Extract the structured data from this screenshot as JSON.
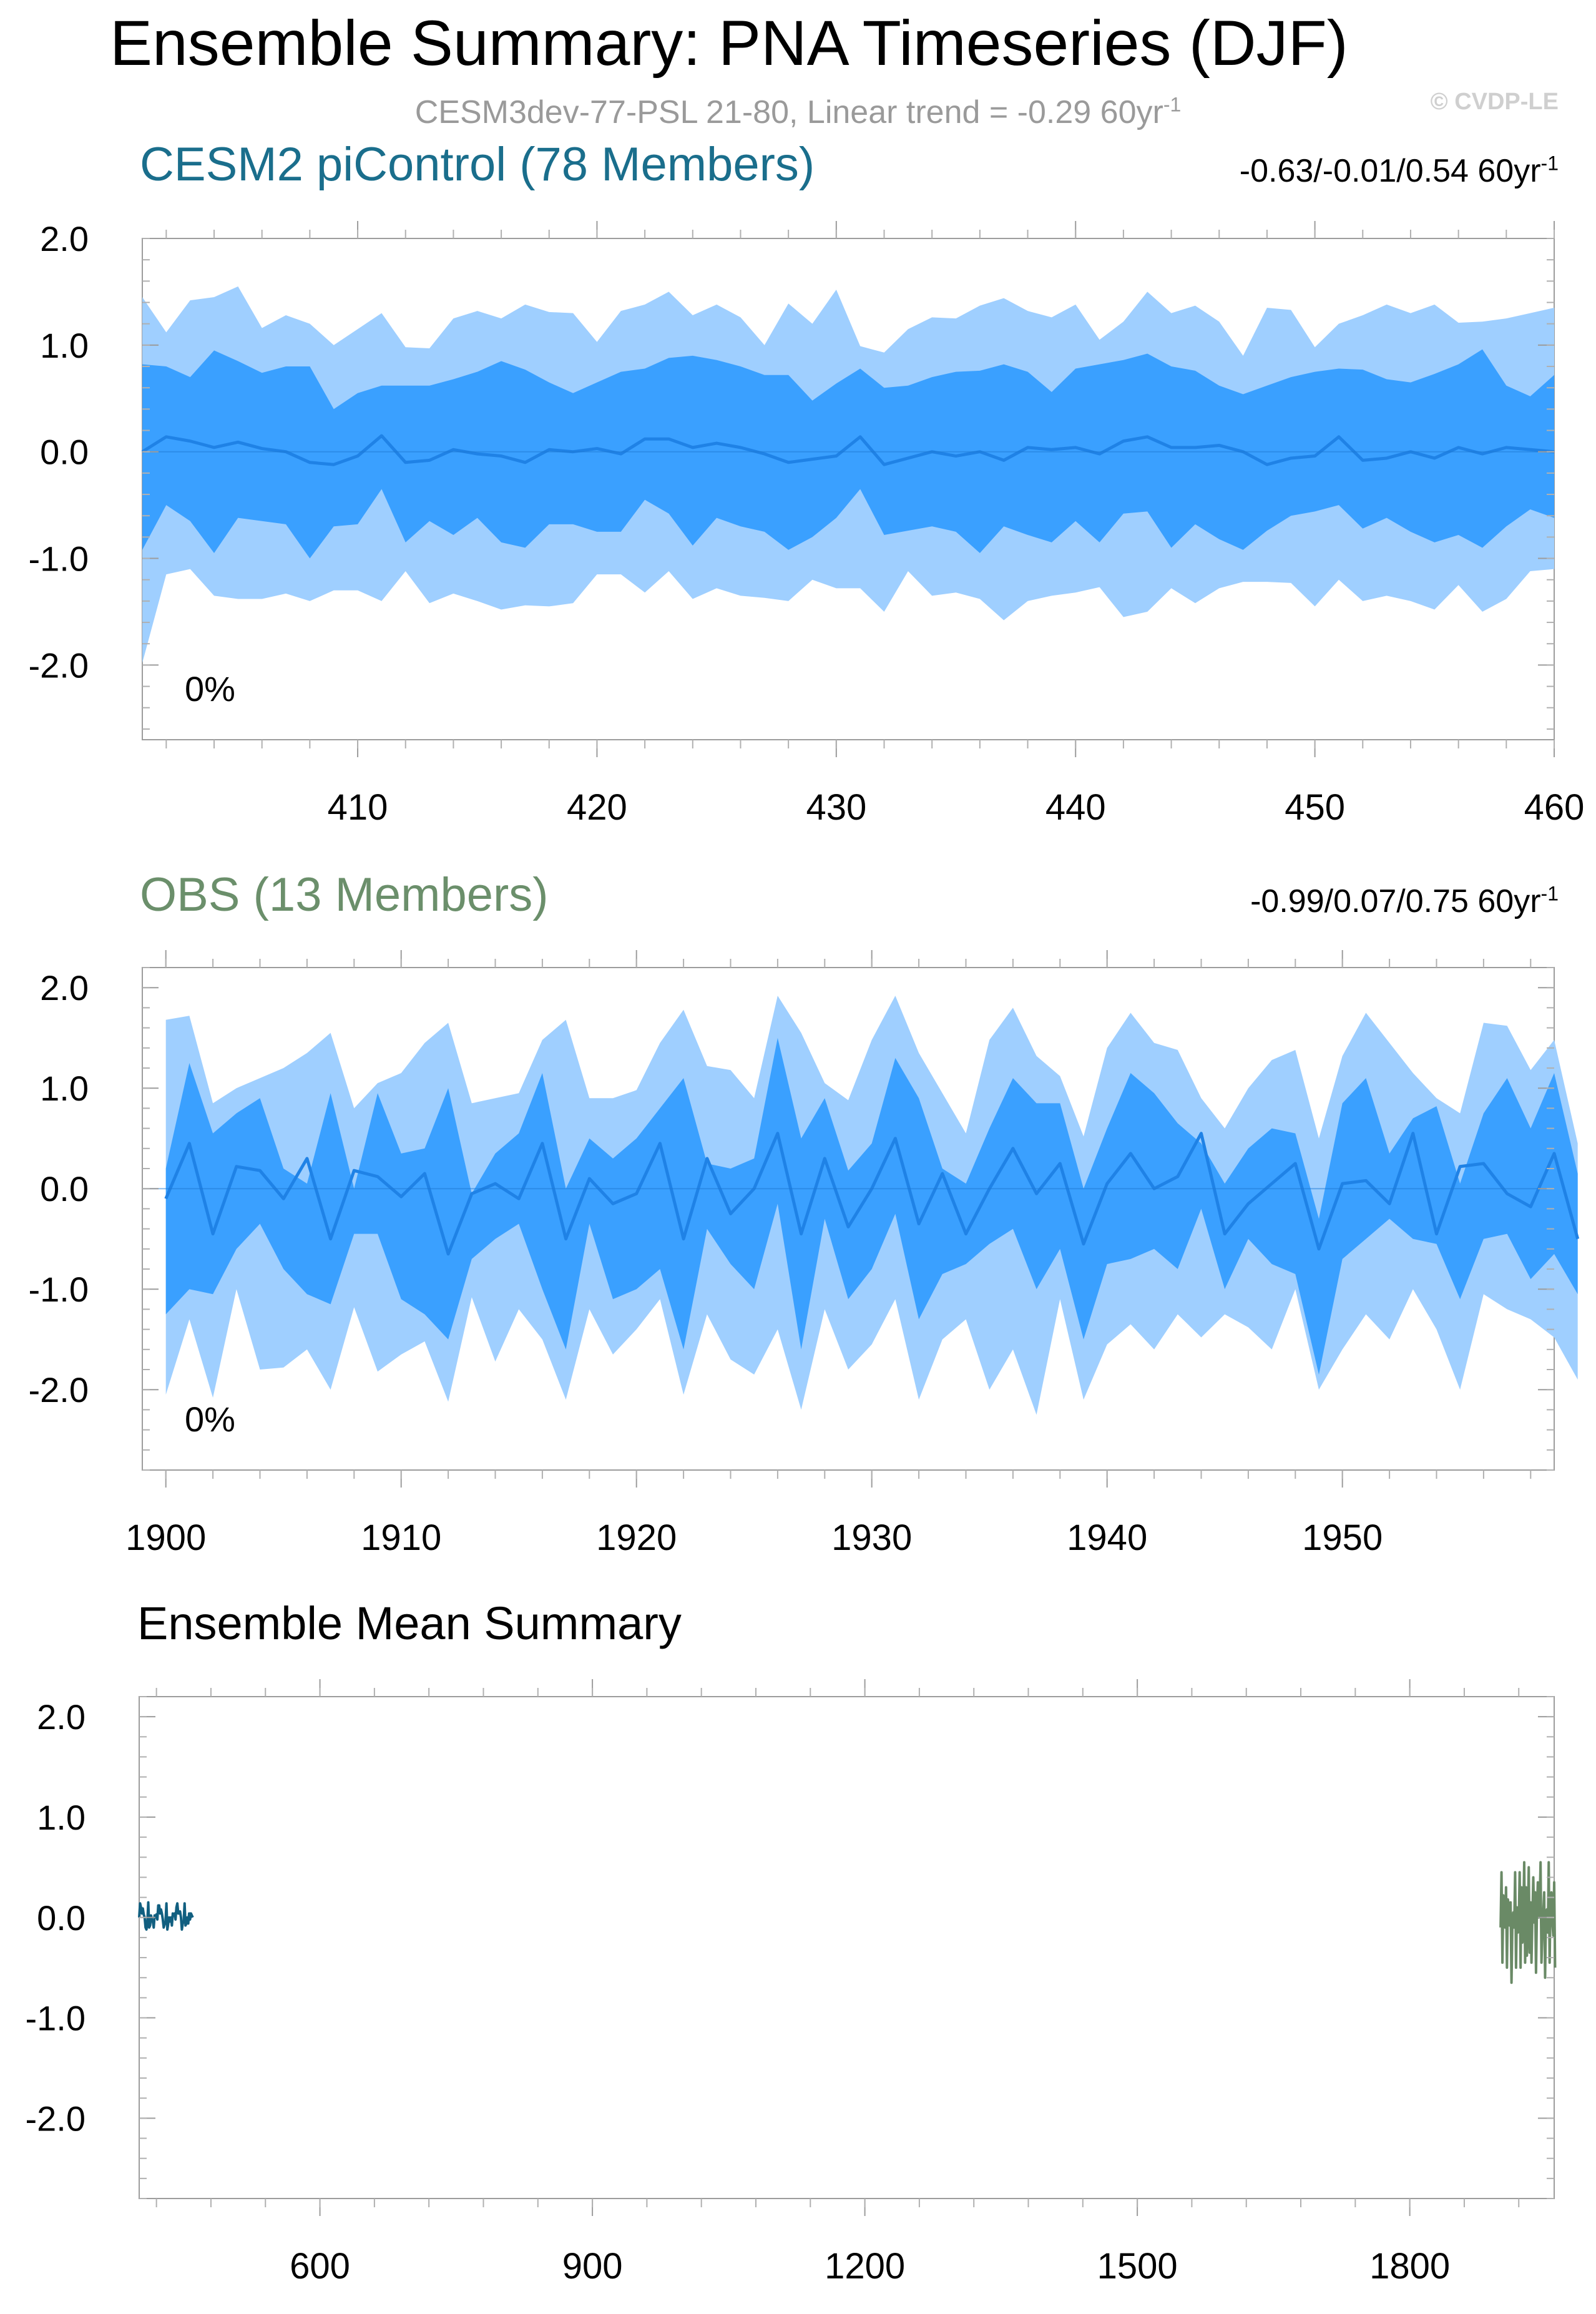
{
  "header": {
    "title": "Ensemble Summary: PNA Timeseries (DJF)",
    "subtitle": "CESM3dev-77-PSL 21-80, Linear trend = -0.29 60yr",
    "subtitle_unit_sup": "-1",
    "watermark": "© CVDP-LE"
  },
  "colors": {
    "band_outer": "#9fcfff",
    "band_inner": "#3aa0ff",
    "median_line": "#1f82e6",
    "cesm_title": "#1a6e8c",
    "cesm_mean": "#115f80",
    "obs_title": "#6b8f6b",
    "obs_mean": "#6a8a66"
  },
  "chart_data": [
    {
      "type": "area",
      "panel": "cesm2-picontrol",
      "title": "CESM2 piControl (78 Members)",
      "trend_text": "-0.63/-0.01/0.54 60yr",
      "trend_sup": "-1",
      "annotation": "0%",
      "xlim": [
        401,
        460
      ],
      "ylim": [
        -2.7,
        2.0
      ],
      "x_ticks": [
        410,
        420,
        430,
        440,
        450,
        460
      ],
      "y_ticks": [
        2.0,
        1.0,
        0.0,
        -1.0,
        -2.0
      ],
      "y_tick_labels": [
        "2.0",
        "1.0",
        "0.0",
        "-1.0",
        "-2.0"
      ],
      "x_start": 401,
      "series": [
        {
          "name": "max",
          "values": [
            1.45,
            1.12,
            1.42,
            1.45,
            1.55,
            1.16,
            1.28,
            1.2,
            1.0,
            1.15,
            1.3,
            0.98,
            0.97,
            1.25,
            1.32,
            1.25,
            1.38,
            1.31,
            1.3,
            1.03,
            1.32,
            1.38,
            1.5,
            1.28,
            1.38,
            1.26,
            1.0,
            1.39,
            1.2,
            1.52,
            0.99,
            0.93,
            1.15,
            1.26,
            1.25,
            1.37,
            1.44,
            1.32,
            1.26,
            1.38,
            1.05,
            1.22,
            1.5,
            1.3,
            1.37,
            1.22,
            0.9,
            1.35,
            1.33,
            0.98,
            1.2,
            1.28,
            1.38,
            1.3,
            1.38,
            1.21,
            1.22,
            1.25,
            1.3,
            1.35
          ]
        },
        {
          "name": "p75",
          "values": [
            0.82,
            0.8,
            0.7,
            0.95,
            0.85,
            0.74,
            0.8,
            0.8,
            0.4,
            0.55,
            0.62,
            0.62,
            0.62,
            0.68,
            0.75,
            0.85,
            0.77,
            0.65,
            0.55,
            0.65,
            0.75,
            0.78,
            0.88,
            0.9,
            0.86,
            0.8,
            0.72,
            0.72,
            0.48,
            0.64,
            0.78,
            0.6,
            0.62,
            0.7,
            0.75,
            0.76,
            0.82,
            0.75,
            0.56,
            0.78,
            0.82,
            0.86,
            0.92,
            0.8,
            0.76,
            0.62,
            0.54,
            0.62,
            0.7,
            0.75,
            0.78,
            0.77,
            0.68,
            0.65,
            0.73,
            0.82,
            0.96,
            0.62,
            0.52,
            0.72
          ]
        },
        {
          "name": "median",
          "values": [
            0.0,
            0.14,
            0.1,
            0.04,
            0.09,
            0.03,
            0.0,
            -0.1,
            -0.12,
            -0.04,
            0.15,
            -0.1,
            -0.08,
            0.02,
            -0.02,
            -0.04,
            -0.1,
            0.02,
            0.0,
            0.03,
            -0.02,
            0.12,
            0.12,
            0.04,
            0.08,
            0.04,
            -0.02,
            -0.1,
            -0.07,
            -0.04,
            0.14,
            -0.12,
            -0.06,
            0.0,
            -0.04,
            0.0,
            -0.08,
            0.04,
            0.02,
            0.04,
            -0.02,
            0.1,
            0.14,
            0.04,
            0.04,
            0.06,
            0.0,
            -0.12,
            -0.06,
            -0.04,
            0.14,
            -0.08,
            -0.06,
            0.0,
            -0.06,
            0.04,
            -0.02,
            0.04,
            0.02,
            0.0
          ]
        },
        {
          "name": "p25",
          "values": [
            -0.92,
            -0.5,
            -0.65,
            -0.95,
            -0.62,
            -0.65,
            -0.68,
            -1.0,
            -0.7,
            -0.68,
            -0.35,
            -0.85,
            -0.65,
            -0.78,
            -0.62,
            -0.85,
            -0.9,
            -0.68,
            -0.68,
            -0.75,
            -0.75,
            -0.45,
            -0.58,
            -0.88,
            -0.62,
            -0.7,
            -0.75,
            -0.92,
            -0.8,
            -0.62,
            -0.35,
            -0.78,
            -0.74,
            -0.7,
            -0.75,
            -0.95,
            -0.7,
            -0.78,
            -0.85,
            -0.65,
            -0.85,
            -0.58,
            -0.56,
            -0.9,
            -0.68,
            -0.82,
            -0.92,
            -0.74,
            -0.6,
            -0.56,
            -0.5,
            -0.72,
            -0.62,
            -0.75,
            -0.85,
            -0.78,
            -0.9,
            -0.7,
            -0.54,
            -0.62
          ]
        },
        {
          "name": "min",
          "values": [
            -1.98,
            -1.15,
            -1.1,
            -1.35,
            -1.38,
            -1.38,
            -1.33,
            -1.4,
            -1.3,
            -1.3,
            -1.4,
            -1.12,
            -1.42,
            -1.33,
            -1.4,
            -1.48,
            -1.44,
            -1.45,
            -1.42,
            -1.15,
            -1.15,
            -1.32,
            -1.12,
            -1.38,
            -1.28,
            -1.35,
            -1.37,
            -1.4,
            -1.2,
            -1.28,
            -1.28,
            -1.5,
            -1.12,
            -1.35,
            -1.32,
            -1.38,
            -1.58,
            -1.4,
            -1.35,
            -1.32,
            -1.27,
            -1.55,
            -1.5,
            -1.28,
            -1.42,
            -1.28,
            -1.22,
            -1.22,
            -1.23,
            -1.45,
            -1.2,
            -1.4,
            -1.35,
            -1.4,
            -1.48,
            -1.25,
            -1.5,
            -1.38,
            -1.12,
            -1.1
          ]
        }
      ]
    },
    {
      "type": "area",
      "panel": "obs",
      "title": "OBS (13 Members)",
      "trend_text": "-0.99/0.07/0.75 60yr",
      "trend_sup": "-1",
      "annotation": "0%",
      "xlim": [
        1899,
        1959
      ],
      "ylim": [
        -2.8,
        2.2
      ],
      "x_ticks": [
        1900,
        1910,
        1920,
        1930,
        1940,
        1950
      ],
      "y_ticks": [
        2.0,
        1.0,
        0.0,
        -1.0,
        -2.0
      ],
      "y_tick_labels": [
        "2.0",
        "1.0",
        "0.0",
        "-1.0",
        "-2.0"
      ],
      "x_start": 1900,
      "series": [
        {
          "name": "max",
          "values": [
            1.68,
            1.72,
            0.85,
            1.0,
            1.1,
            1.2,
            1.35,
            1.55,
            0.8,
            1.05,
            1.15,
            1.45,
            1.65,
            0.85,
            0.9,
            0.95,
            1.48,
            1.68,
            0.9,
            0.9,
            0.98,
            1.45,
            1.78,
            1.22,
            1.18,
            0.9,
            1.92,
            1.55,
            1.05,
            0.88,
            1.48,
            1.92,
            1.35,
            0.95,
            0.55,
            1.48,
            1.8,
            1.32,
            1.12,
            0.52,
            1.4,
            1.75,
            1.45,
            1.38,
            0.9,
            0.6,
            1.0,
            1.28,
            1.38,
            0.5,
            1.32,
            1.75,
            1.45,
            1.15,
            0.9,
            0.75,
            1.65,
            1.62,
            1.18,
            1.48,
            0.45
          ]
        },
        {
          "name": "p75",
          "values": [
            0.2,
            1.25,
            0.55,
            0.75,
            0.9,
            0.2,
            0.05,
            0.95,
            0.0,
            0.95,
            0.35,
            0.4,
            1.0,
            -0.05,
            0.35,
            0.55,
            1.15,
            0.0,
            0.5,
            0.3,
            0.5,
            0.8,
            1.1,
            0.25,
            0.2,
            0.3,
            1.5,
            0.5,
            0.9,
            0.18,
            0.45,
            1.3,
            0.9,
            0.2,
            0.05,
            0.6,
            1.1,
            0.85,
            0.85,
            0.0,
            0.6,
            1.15,
            0.95,
            0.65,
            0.45,
            0.05,
            0.4,
            0.6,
            0.55,
            -0.3,
            0.85,
            1.1,
            0.35,
            0.7,
            0.82,
            0.05,
            0.75,
            1.1,
            0.6,
            1.15,
            0.15
          ]
        },
        {
          "name": "median",
          "values": [
            -0.1,
            0.45,
            -0.45,
            0.22,
            0.18,
            -0.1,
            0.3,
            -0.5,
            0.18,
            0.12,
            -0.08,
            0.15,
            -0.65,
            -0.05,
            0.05,
            -0.1,
            0.45,
            -0.5,
            0.1,
            -0.15,
            -0.05,
            0.45,
            -0.5,
            0.3,
            -0.25,
            0.0,
            0.55,
            -0.45,
            0.3,
            -0.38,
            0.0,
            0.5,
            -0.35,
            0.15,
            -0.45,
            0.0,
            0.4,
            -0.05,
            0.25,
            -0.55,
            0.05,
            0.35,
            0.0,
            0.12,
            0.55,
            -0.45,
            -0.15,
            0.05,
            0.25,
            -0.6,
            0.05,
            0.08,
            -0.15,
            0.55,
            -0.45,
            0.22,
            0.25,
            -0.05,
            -0.18,
            0.35,
            -0.5
          ]
        },
        {
          "name": "p25",
          "values": [
            -1.25,
            -1.0,
            -1.05,
            -0.6,
            -0.35,
            -0.8,
            -1.05,
            -1.15,
            -0.45,
            -0.45,
            -1.1,
            -1.25,
            -1.5,
            -0.7,
            -0.5,
            -0.35,
            -1.0,
            -1.6,
            -0.35,
            -1.1,
            -1.0,
            -0.8,
            -1.6,
            -0.4,
            -0.75,
            -1.0,
            -0.15,
            -1.6,
            -0.3,
            -1.1,
            -0.8,
            -0.25,
            -1.3,
            -0.85,
            -0.75,
            -0.55,
            -0.4,
            -1.0,
            -0.6,
            -1.5,
            -0.75,
            -0.7,
            -0.6,
            -0.8,
            -0.2,
            -1.0,
            -0.5,
            -0.75,
            -0.85,
            -1.85,
            -0.7,
            -0.5,
            -0.3,
            -0.5,
            -0.55,
            -1.1,
            -0.5,
            -0.45,
            -0.9,
            -0.65,
            -1.05
          ]
        },
        {
          "name": "min",
          "values": [
            -2.05,
            -1.3,
            -2.08,
            -1.0,
            -1.8,
            -1.78,
            -1.6,
            -2.0,
            -1.18,
            -1.82,
            -1.65,
            -1.52,
            -2.12,
            -1.08,
            -1.72,
            -1.2,
            -1.5,
            -2.1,
            -1.2,
            -1.65,
            -1.4,
            -1.1,
            -2.05,
            -1.25,
            -1.7,
            -1.85,
            -1.4,
            -2.2,
            -1.2,
            -1.8,
            -1.55,
            -1.1,
            -2.1,
            -1.5,
            -1.3,
            -2.0,
            -1.6,
            -2.25,
            -1.1,
            -2.1,
            -1.55,
            -1.35,
            -1.6,
            -1.25,
            -1.48,
            -1.25,
            -1.38,
            -1.6,
            -1.0,
            -2.0,
            -1.6,
            -1.25,
            -1.5,
            -1.0,
            -1.4,
            -2.0,
            -1.05,
            -1.2,
            -1.3,
            -1.48,
            -1.9
          ]
        }
      ]
    },
    {
      "type": "line",
      "panel": "ensemble-mean-summary",
      "title": "Ensemble Mean Summary",
      "xlim": [
        401,
        1959
      ],
      "ylim": [
        -2.8,
        2.2
      ],
      "x_ticks": [
        600,
        900,
        1200,
        1500,
        1800
      ],
      "y_ticks": [
        2.0,
        1.0,
        0.0,
        -1.0,
        -2.0
      ],
      "y_tick_labels": [
        "2.0",
        "1.0",
        "0.0",
        "-1.0",
        "-2.0"
      ],
      "series": [
        {
          "name": "CESM2 piControl",
          "x_start": 401,
          "values": [
            0.0,
            0.14,
            0.1,
            0.04,
            0.09,
            0.03,
            0.0,
            -0.1,
            -0.12,
            -0.04,
            0.15,
            -0.1,
            -0.08,
            0.02,
            -0.02,
            -0.04,
            -0.1,
            0.02,
            0.0,
            0.03,
            -0.02,
            0.12,
            0.12,
            0.04,
            0.08,
            0.04,
            -0.02,
            -0.1,
            -0.07,
            -0.04,
            0.14,
            -0.12,
            -0.06,
            0.0,
            -0.04,
            0.0,
            -0.08,
            0.04,
            0.02,
            0.04,
            -0.02,
            0.1,
            0.14,
            0.04,
            0.04,
            0.06,
            0.0,
            -0.12,
            -0.06,
            -0.04,
            0.14,
            -0.08,
            -0.06,
            0.0,
            -0.06,
            0.04,
            -0.02,
            0.04,
            0.02,
            0.0
          ]
        },
        {
          "name": "OBS",
          "x_start": 1900,
          "values": [
            -0.1,
            0.45,
            -0.45,
            0.22,
            0.18,
            -0.1,
            0.3,
            -0.5,
            0.18,
            0.12,
            -0.08,
            0.15,
            -0.65,
            -0.05,
            0.05,
            -0.1,
            0.45,
            -0.5,
            0.1,
            -0.15,
            -0.05,
            0.45,
            -0.5,
            0.3,
            -0.25,
            0.0,
            0.55,
            -0.45,
            0.3,
            -0.38,
            0.0,
            0.5,
            -0.35,
            0.15,
            -0.45,
            0.0,
            0.4,
            -0.05,
            0.25,
            -0.55,
            0.05,
            0.35,
            0.0,
            0.12,
            0.55,
            -0.45,
            -0.15,
            0.05,
            0.25,
            -0.6,
            0.05,
            0.08,
            -0.15,
            0.55,
            -0.45,
            0.22,
            0.25,
            -0.05,
            -0.18,
            0.35,
            -0.5
          ]
        }
      ]
    }
  ]
}
